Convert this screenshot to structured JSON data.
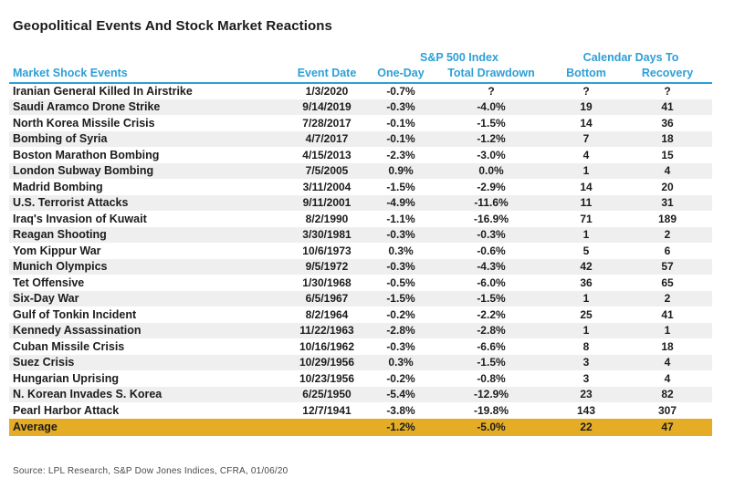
{
  "chart_data": {
    "type": "table",
    "title": "Geopolitical Events And Stock Market Reactions",
    "group_headers": [
      {
        "label": "S&P 500 Index",
        "spans": [
          "One-Day",
          "Total Drawdown"
        ]
      },
      {
        "label": "Calendar Days To",
        "spans": [
          "Bottom",
          "Recovery"
        ]
      }
    ],
    "columns": [
      "Market Shock Events",
      "Event Date",
      "One-Day",
      "Total Drawdown",
      "Bottom",
      "Recovery"
    ],
    "rows": [
      [
        "Iranian General Killed In Airstrike",
        "1/3/2020",
        "-0.7%",
        "?",
        "?",
        "?"
      ],
      [
        "Saudi Aramco Drone Strike",
        "9/14/2019",
        "-0.3%",
        "-4.0%",
        "19",
        "41"
      ],
      [
        "North Korea Missile Crisis",
        "7/28/2017",
        "-0.1%",
        "-1.5%",
        "14",
        "36"
      ],
      [
        "Bombing of Syria",
        "4/7/2017",
        "-0.1%",
        "-1.2%",
        "7",
        "18"
      ],
      [
        "Boston Marathon Bombing",
        "4/15/2013",
        "-2.3%",
        "-3.0%",
        "4",
        "15"
      ],
      [
        "London Subway Bombing",
        "7/5/2005",
        "0.9%",
        "0.0%",
        "1",
        "4"
      ],
      [
        "Madrid Bombing",
        "3/11/2004",
        "-1.5%",
        "-2.9%",
        "14",
        "20"
      ],
      [
        "U.S. Terrorist Attacks",
        "9/11/2001",
        "-4.9%",
        "-11.6%",
        "11",
        "31"
      ],
      [
        "Iraq's Invasion of Kuwait",
        "8/2/1990",
        "-1.1%",
        "-16.9%",
        "71",
        "189"
      ],
      [
        "Reagan Shooting",
        "3/30/1981",
        "-0.3%",
        "-0.3%",
        "1",
        "2"
      ],
      [
        "Yom Kippur War",
        "10/6/1973",
        "0.3%",
        "-0.6%",
        "5",
        "6"
      ],
      [
        "Munich Olympics",
        "9/5/1972",
        "-0.3%",
        "-4.3%",
        "42",
        "57"
      ],
      [
        "Tet Offensive",
        "1/30/1968",
        "-0.5%",
        "-6.0%",
        "36",
        "65"
      ],
      [
        "Six-Day War",
        "6/5/1967",
        "-1.5%",
        "-1.5%",
        "1",
        "2"
      ],
      [
        "Gulf of Tonkin Incident",
        "8/2/1964",
        "-0.2%",
        "-2.2%",
        "25",
        "41"
      ],
      [
        "Kennedy Assassination",
        "11/22/1963",
        "-2.8%",
        "-2.8%",
        "1",
        "1"
      ],
      [
        "Cuban Missile Crisis",
        "10/16/1962",
        "-0.3%",
        "-6.6%",
        "8",
        "18"
      ],
      [
        "Suez Crisis",
        "10/29/1956",
        "0.3%",
        "-1.5%",
        "3",
        "4"
      ],
      [
        "Hungarian Uprising",
        "10/23/1956",
        "-0.2%",
        "-0.8%",
        "3",
        "4"
      ],
      [
        "N. Korean Invades S. Korea",
        "6/25/1950",
        "-5.4%",
        "-12.9%",
        "23",
        "82"
      ],
      [
        "Pearl Harbor Attack",
        "12/7/1941",
        "-3.8%",
        "-19.8%",
        "143",
        "307"
      ]
    ],
    "average_row": [
      "Average",
      "",
      "-1.2%",
      "-5.0%",
      "22",
      "47"
    ],
    "source": "Source: LPL Research, S&P Dow Jones Indices, CFRA, 01/06/20",
    "layout": {
      "stripe_pattern": "even-rows-gray",
      "average_row_highlight": "gold"
    }
  },
  "colors": {
    "header_blue": "#2E9FD6",
    "stripe_gray": "#EFEFEF",
    "average_gold": "#E5AD26"
  }
}
